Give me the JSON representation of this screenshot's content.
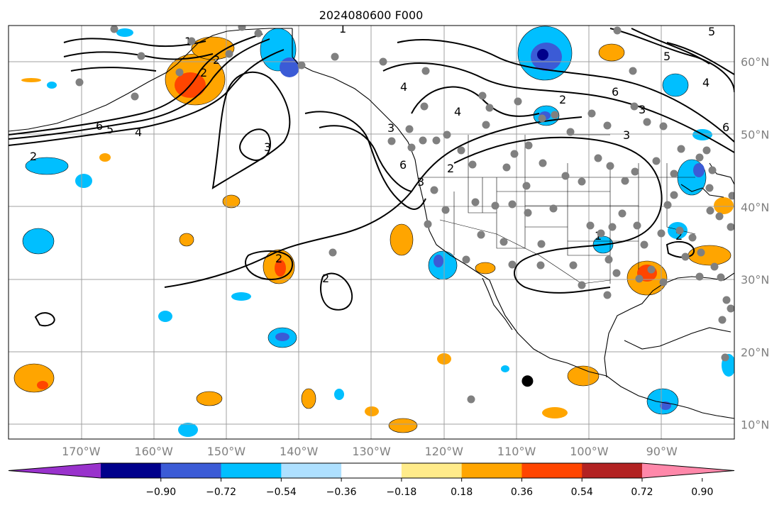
{
  "title": "2024080600 F000",
  "lon_ticks": [
    {
      "value": -170,
      "label": "170°W"
    },
    {
      "value": -160,
      "label": "160°W"
    },
    {
      "value": -150,
      "label": "150°W"
    },
    {
      "value": -140,
      "label": "140°W"
    },
    {
      "value": -130,
      "label": "130°W"
    },
    {
      "value": -120,
      "label": "120°W"
    },
    {
      "value": -110,
      "label": "110°W"
    },
    {
      "value": -100,
      "label": "100°W"
    },
    {
      "value": -90,
      "label": "90°W"
    }
  ],
  "lat_ticks": [
    {
      "value": 60,
      "label": "60°N"
    },
    {
      "value": 50,
      "label": "50°N"
    },
    {
      "value": 40,
      "label": "40°N"
    },
    {
      "value": 30,
      "label": "30°N"
    },
    {
      "value": 20,
      "label": "20°N"
    },
    {
      "value": 10,
      "label": "10°N"
    }
  ],
  "colorbar": {
    "ticks": [
      "−0.90",
      "−0.72",
      "−0.54",
      "−0.36",
      "−0.18",
      "0.18",
      "0.36",
      "0.54",
      "0.72",
      "0.90"
    ],
    "colors": [
      "#9932cc",
      "#00008b",
      "#3b5bd6",
      "#00bfff",
      "#aee0ff",
      "#ffffff",
      "#ffeb8a",
      "#ffa500",
      "#ff4500",
      "#b22222",
      "#ff88aa"
    ]
  },
  "contour_labels": [
    "1",
    "6",
    "5",
    "4",
    "2",
    "3",
    "6",
    "3",
    "1",
    "2",
    "3",
    "4",
    "5",
    "2",
    "2",
    "2",
    "2",
    "1",
    "2",
    "2",
    "6",
    "3",
    "3",
    "4",
    "4",
    "6",
    "5"
  ],
  "marker": {
    "lon": -108.5,
    "lat": 16.0
  },
  "colors": {
    "grid": "#a0a0a0",
    "coast": "#000000",
    "station": "#808080",
    "tick_label": "#808080"
  }
}
